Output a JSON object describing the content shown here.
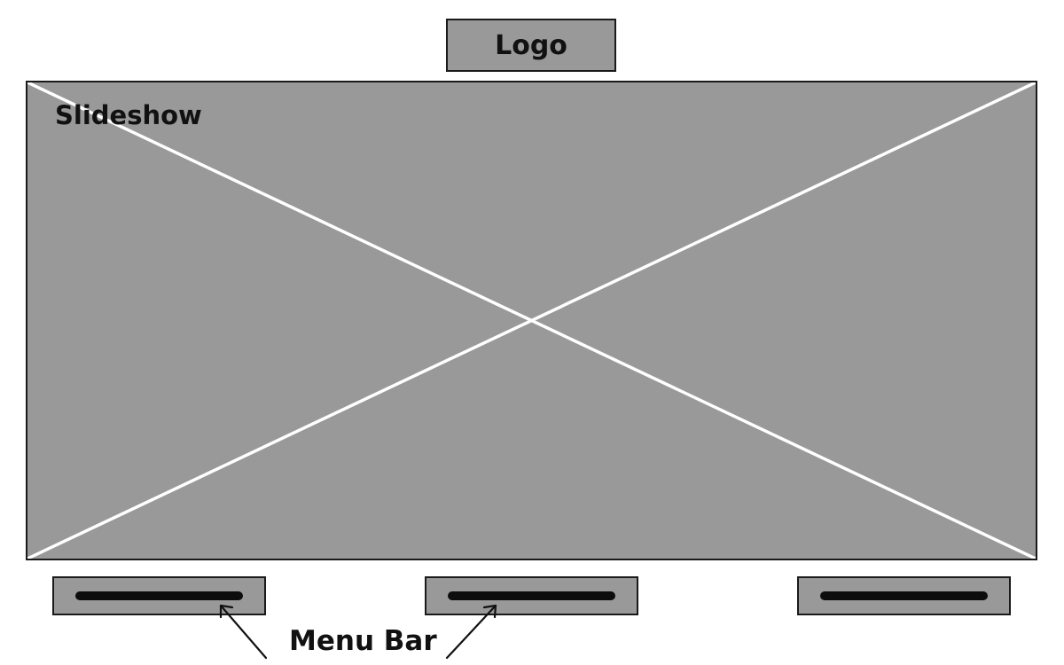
{
  "logo": {
    "label": "Logo"
  },
  "slideshow": {
    "label": "Slideshow"
  },
  "menu": {
    "items": [
      {
        "id": "menu-item-1"
      },
      {
        "id": "menu-item-2"
      },
      {
        "id": "menu-item-3"
      }
    ]
  },
  "annotation": {
    "label": "Menu Bar"
  },
  "colors": {
    "block_fill": "#999999",
    "border": "#1a1a1a",
    "cross_line": "#ffffff",
    "text": "#111111",
    "menu_line": "#0d0d0d"
  }
}
